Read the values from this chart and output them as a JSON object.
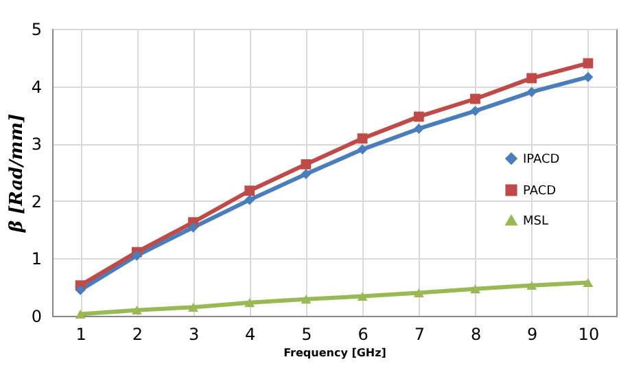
{
  "chart_data": {
    "type": "line",
    "xlabel": "Frequency [GHz]",
    "ylabel": "β [Rad/mm]",
    "categories": [
      "1",
      "2",
      "3",
      "4",
      "5",
      "6",
      "7",
      "8",
      "9",
      "10"
    ],
    "series": [
      {
        "name": "IPACD",
        "color": "#4a7ebb",
        "marker": "diamond",
        "values": [
          0.45,
          1.05,
          1.54,
          2.02,
          2.47,
          2.9,
          3.26,
          3.57,
          3.9,
          4.16
        ]
      },
      {
        "name": "PACD",
        "color": "#be4b48",
        "marker": "square",
        "values": [
          0.53,
          1.11,
          1.63,
          2.18,
          2.64,
          3.09,
          3.47,
          3.78,
          4.14,
          4.4
        ]
      },
      {
        "name": "MSL",
        "color": "#98b954",
        "marker": "triangle",
        "values": [
          0.03,
          0.1,
          0.15,
          0.23,
          0.29,
          0.34,
          0.4,
          0.47,
          0.53,
          0.58
        ]
      }
    ],
    "ylim": [
      0,
      5
    ],
    "yticks": [
      0,
      1,
      2,
      3,
      4,
      5
    ],
    "grid": true,
    "legend": "right"
  }
}
